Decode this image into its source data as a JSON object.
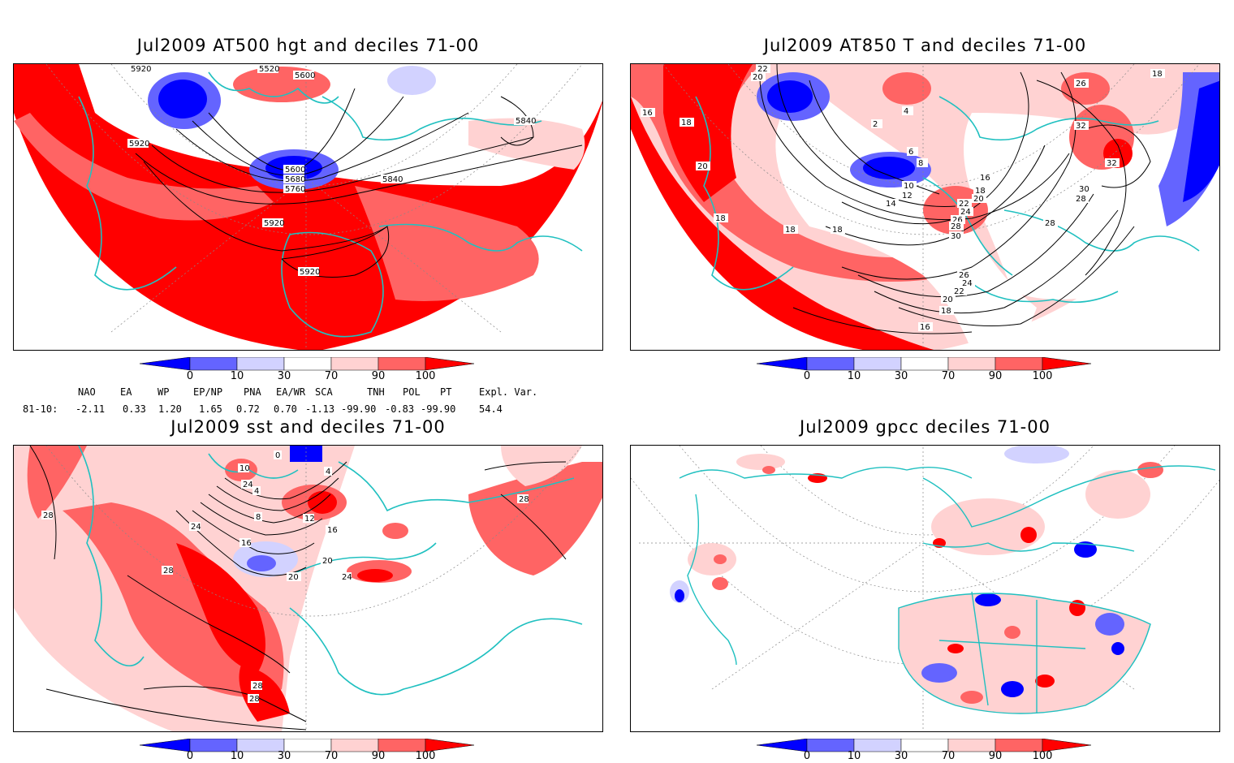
{
  "panels": [
    {
      "title": "Jul2009 AT500 hgt and deciles 71-00",
      "contour_labels": [
        "5920",
        "5520",
        "5600",
        "5920",
        "5600",
        "5680",
        "5760",
        "5840",
        "5840",
        "5920",
        "5920"
      ]
    },
    {
      "title": "Jul2009 AT850 T and deciles 71-00",
      "contour_labels": [
        "22",
        "20",
        "16",
        "18",
        "20",
        "18",
        "18",
        "18",
        "2",
        "4",
        "6",
        "8",
        "10",
        "12",
        "14",
        "16",
        "18",
        "20",
        "22",
        "24",
        "26",
        "28",
        "30",
        "26",
        "24",
        "22",
        "20",
        "18",
        "16",
        "26",
        "32",
        "32",
        "30",
        "28",
        "28",
        "18"
      ]
    },
    {
      "title": "Jul2009 sst and deciles 71-00",
      "contour_labels": [
        "28",
        "24",
        "16",
        "8",
        "4",
        "20",
        "24",
        "12",
        "16",
        "20",
        "28",
        "28",
        "28",
        "28",
        "24",
        "0",
        "10",
        "4"
      ]
    },
    {
      "title": "Jul2009 gpcc deciles 71-00",
      "contour_labels": []
    }
  ],
  "colorbar": {
    "labels": [
      "0",
      "10",
      "30",
      "70",
      "90",
      "100"
    ],
    "colors": [
      "#0000ff",
      "#6464ff",
      "#d2d2ff",
      "#ffffff",
      "#ffd2d2",
      "#ff6464",
      "#ff0000"
    ]
  },
  "indices": {
    "headers": [
      "NAO",
      "EA",
      "WP",
      "EP/NP",
      "PNA",
      "EA/WR",
      "SCA",
      "TNH",
      "POL",
      "PT",
      "Expl. Var."
    ],
    "row_label": "81-10:",
    "values": [
      "-2.11",
      "0.33",
      "1.20",
      "1.65",
      "0.72",
      "0.70",
      "-1.13",
      "-99.90",
      "-0.83",
      "-99.90",
      "54.4"
    ]
  },
  "map_colors": {
    "land_outline": "#20c0c0",
    "contour": "#000000",
    "grid": "#888888"
  }
}
